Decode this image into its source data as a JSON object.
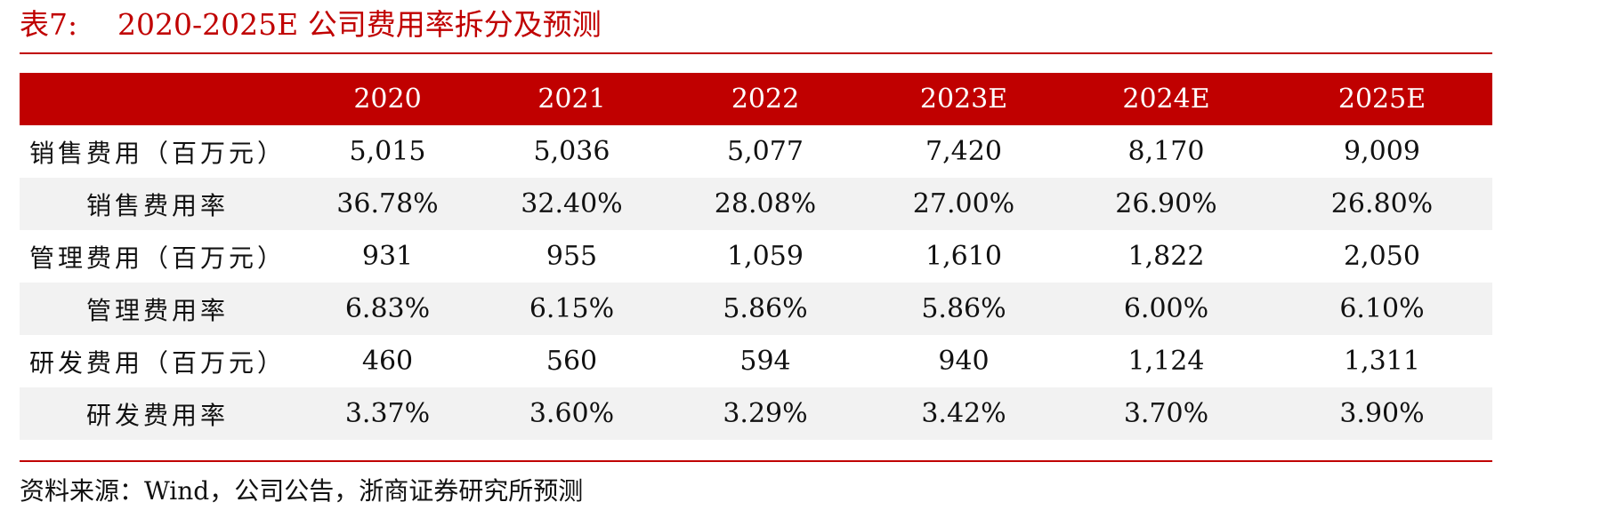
{
  "title": {
    "number": "表7:",
    "text": "2020-2025E 公司费用率拆分及预测"
  },
  "table": {
    "corner": "",
    "columns": [
      "2020",
      "2021",
      "2022",
      "2023E",
      "2024E",
      "2025E"
    ],
    "rows": [
      {
        "label": "销售费用（百万元）",
        "values": [
          "5,015",
          "5,036",
          "5,077",
          "7,420",
          "8,170",
          "9,009"
        ]
      },
      {
        "label": "销售费用率",
        "values": [
          "36.78%",
          "32.40%",
          "28.08%",
          "27.00%",
          "26.90%",
          "26.80%"
        ]
      },
      {
        "label": "管理费用（百万元）",
        "values": [
          "931",
          "955",
          "1,059",
          "1,610",
          "1,822",
          "2,050"
        ]
      },
      {
        "label": "管理费用率",
        "values": [
          "6.83%",
          "6.15%",
          "5.86%",
          "5.86%",
          "6.00%",
          "6.10%"
        ]
      },
      {
        "label": "研发费用（百万元）",
        "values": [
          "460",
          "560",
          "594",
          "940",
          "1,124",
          "1,311"
        ]
      },
      {
        "label": "研发费用率",
        "values": [
          "3.37%",
          "3.60%",
          "3.29%",
          "3.42%",
          "3.70%",
          "3.90%"
        ]
      }
    ]
  },
  "source": "资料来源：Wind，公司公告，浙商证券研究所预测",
  "colors": {
    "accent": "#c00000",
    "stripe": "#f2f2f2"
  }
}
